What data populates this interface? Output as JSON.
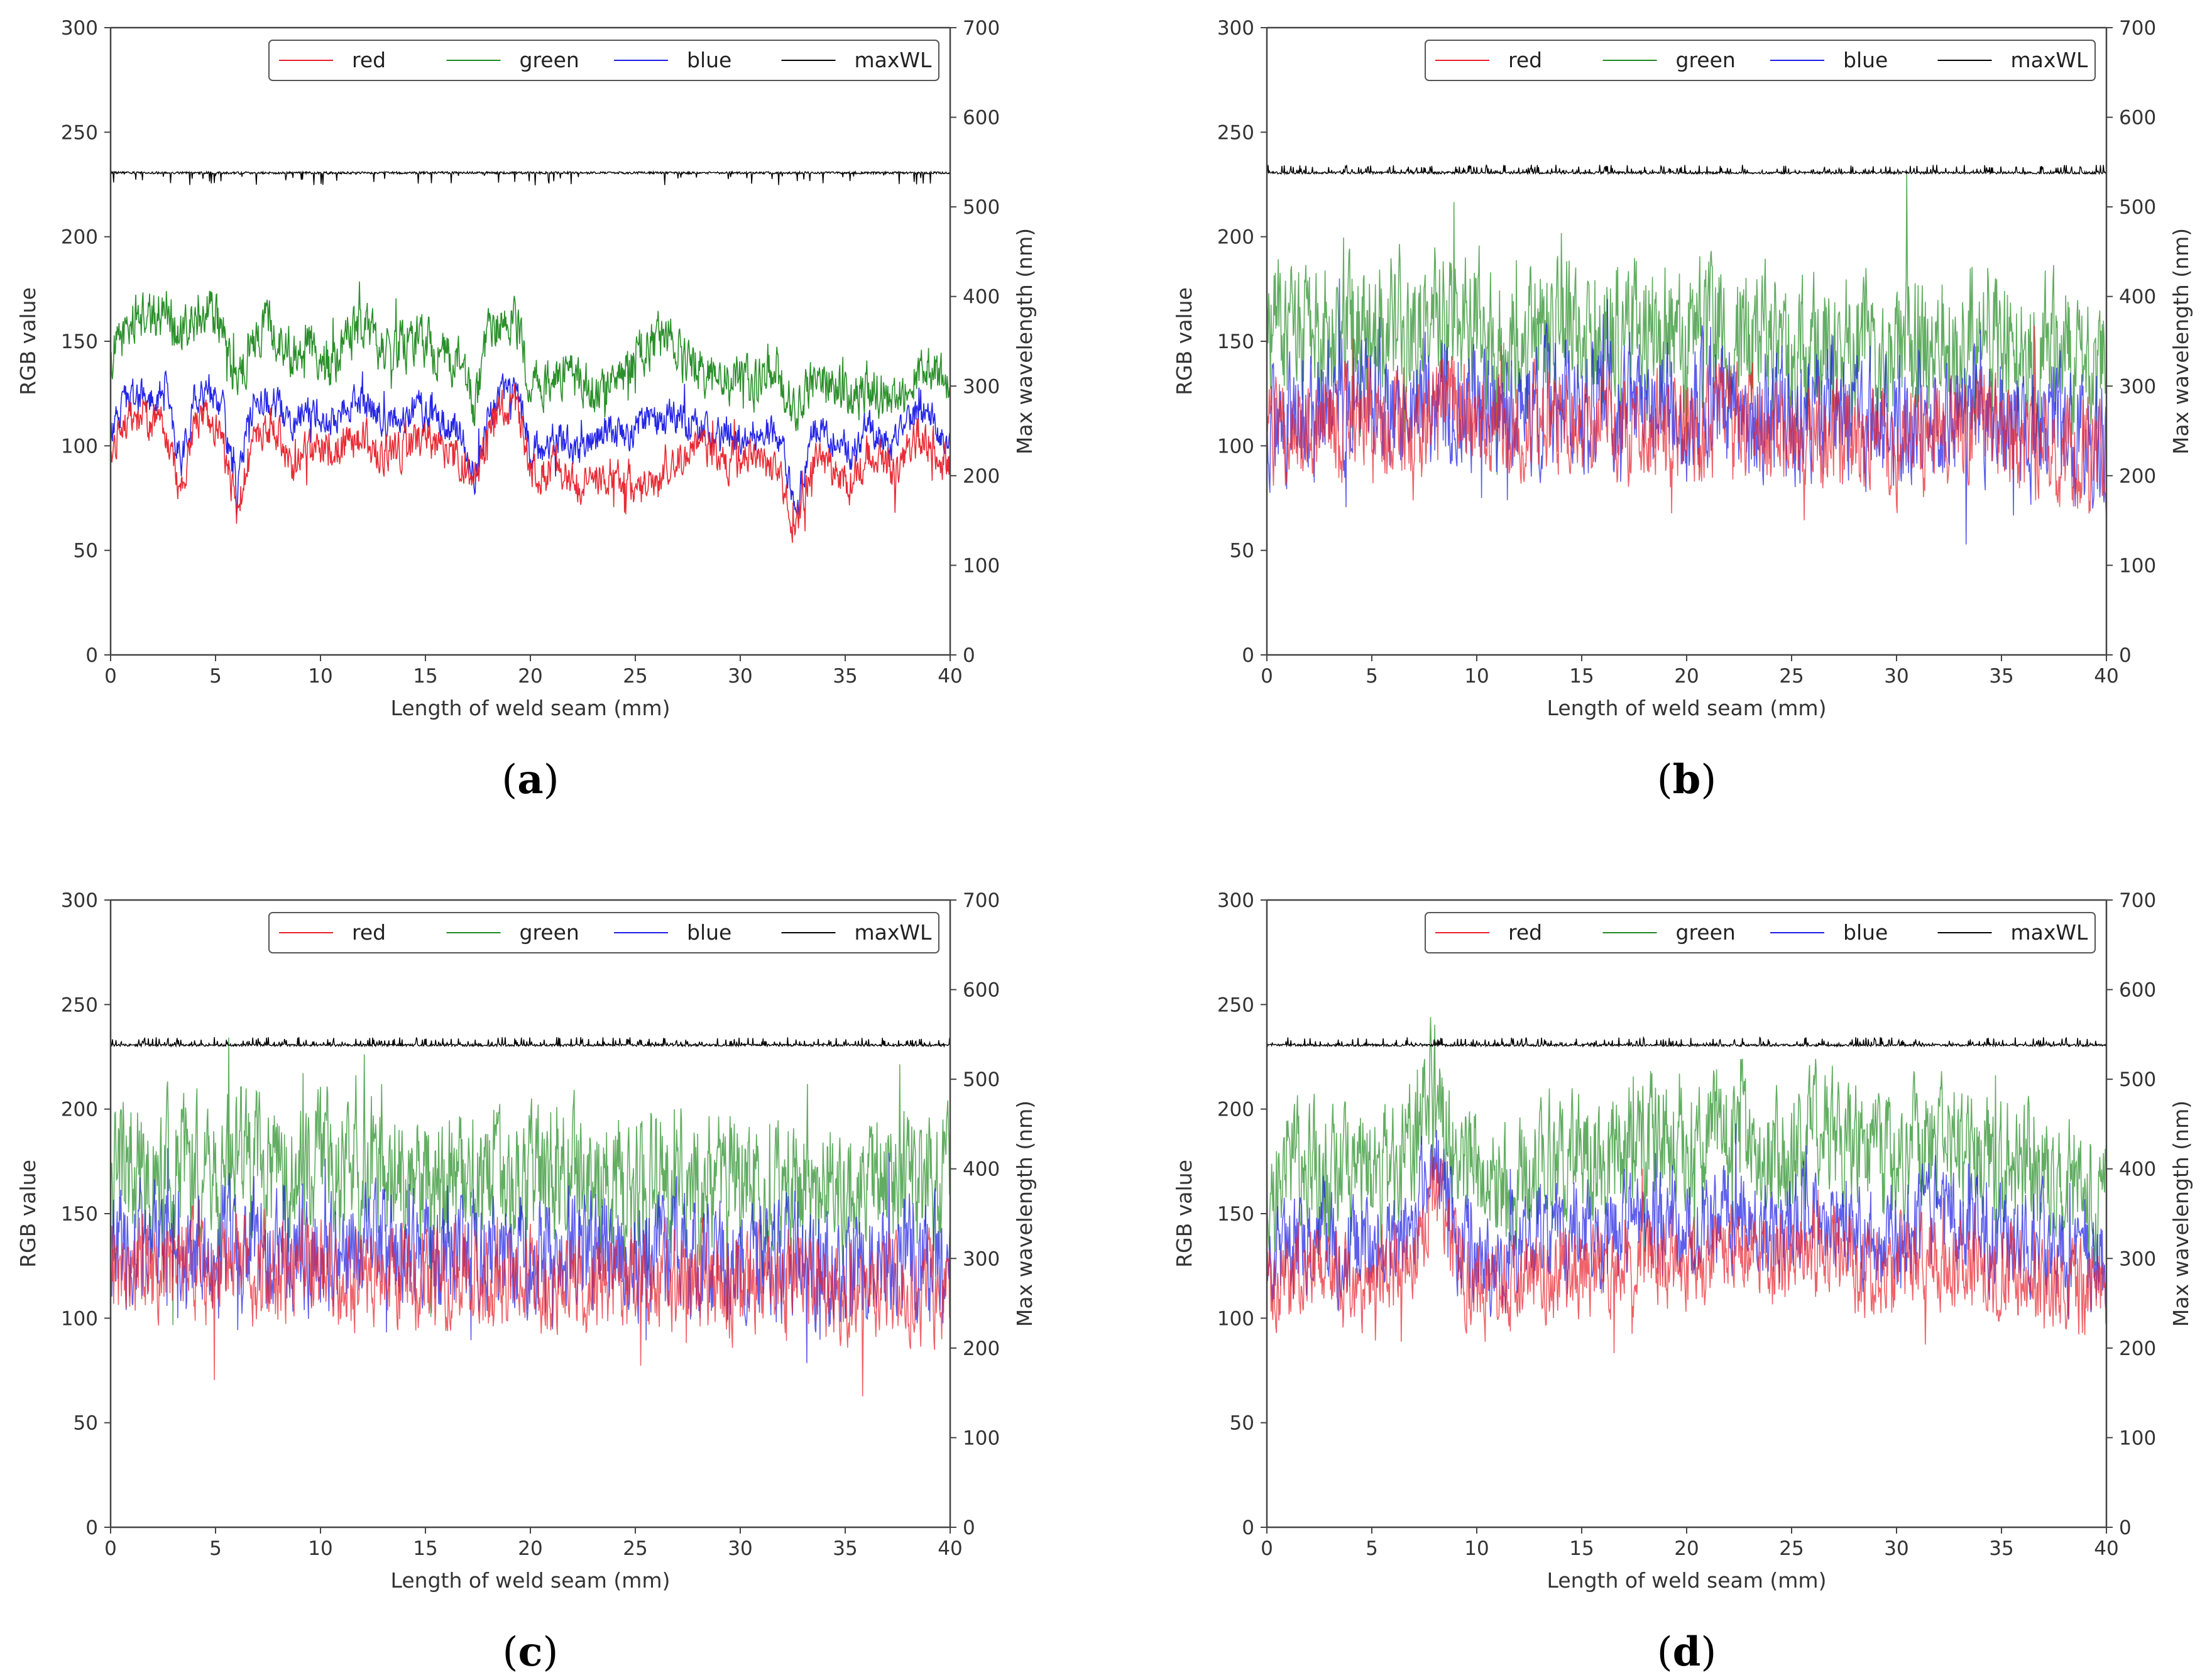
{
  "figure": {
    "captions": [
      "(a)",
      "(b)",
      "(c)",
      "(d)"
    ],
    "caption_letters": [
      "a",
      "b",
      "c",
      "d"
    ]
  },
  "colors": {
    "red": "#e8202a",
    "green": "#1f8a1f",
    "blue": "#1a1ae6",
    "maxWL": "#000000",
    "axis": "#444444",
    "text": "#333333"
  },
  "chart_data": [
    {
      "panel": "a",
      "type": "line",
      "xlabel": "Length of weld seam (mm)",
      "ylabel": "RGB value",
      "ylabel_right": "Max wavelength (nm)",
      "xlim": [
        0,
        40
      ],
      "ylim": [
        0,
        300
      ],
      "ylim_right": [
        0,
        700
      ],
      "xticks": [
        "0",
        "5",
        "10",
        "15",
        "20",
        "25",
        "30",
        "35",
        "40"
      ],
      "yticks": [
        "0",
        "50",
        "100",
        "150",
        "200",
        "250",
        "300"
      ],
      "yticks_right": [
        "0",
        "100",
        "200",
        "300",
        "400",
        "500",
        "600",
        "700"
      ],
      "legend": {
        "position": "top-right",
        "entries": [
          "red",
          "green",
          "blue",
          "maxWL"
        ]
      },
      "series": [
        {
          "name": "red",
          "axis": "left",
          "noise": 8,
          "values": [
            96,
            110,
            115,
            112,
            108,
            75,
            108,
            112,
            104,
            65,
            102,
            110,
            108,
            90,
            96,
            100,
            98,
            102,
            105,
            96,
            98,
            100,
            104,
            102,
            98,
            94,
            80,
            108,
            120,
            118,
            88,
            86,
            90,
            84,
            82,
            88,
            86,
            84,
            80,
            86,
            95,
            94,
            100,
            98,
            92,
            94,
            96,
            90,
            82,
            60,
            90,
            92,
            88,
            80,
            96,
            92,
            86,
            100,
            104,
            98,
            90
          ]
        },
        {
          "name": "green",
          "axis": "left",
          "noise": 10,
          "values": [
            140,
            155,
            162,
            160,
            168,
            150,
            160,
            168,
            155,
            125,
            150,
            160,
            152,
            145,
            150,
            145,
            140,
            152,
            158,
            150,
            145,
            148,
            152,
            148,
            142,
            138,
            118,
            150,
            160,
            160,
            130,
            128,
            135,
            130,
            128,
            125,
            132,
            135,
            145,
            150,
            152,
            140,
            138,
            130,
            132,
            130,
            128,
            138,
            132,
            116,
            128,
            132,
            128,
            118,
            130,
            126,
            124,
            130,
            138,
            134,
            126
          ]
        },
        {
          "name": "blue",
          "axis": "left",
          "noise": 7,
          "values": [
            108,
            120,
            125,
            122,
            126,
            90,
            122,
            128,
            118,
            78,
            118,
            124,
            120,
            110,
            116,
            114,
            112,
            118,
            122,
            114,
            112,
            114,
            118,
            116,
            110,
            106,
            84,
            115,
            126,
            124,
            98,
            100,
            104,
            100,
            98,
            104,
            108,
            106,
            110,
            112,
            114,
            112,
            110,
            104,
            106,
            104,
            102,
            108,
            100,
            70,
            104,
            106,
            102,
            95,
            110,
            106,
            100,
            112,
            116,
            110,
            100
          ]
        },
        {
          "name": "maxWL",
          "axis": "right",
          "baseline": 538,
          "spikes": "down",
          "values": [
            538
          ]
        }
      ]
    },
    {
      "panel": "b",
      "type": "line",
      "xlabel": "Length of weld seam (mm)",
      "ylabel": "RGB value",
      "ylabel_right": "Max wavelength (nm)",
      "xlim": [
        0,
        40
      ],
      "ylim": [
        0,
        300
      ],
      "ylim_right": [
        0,
        700
      ],
      "xticks": [
        "0",
        "5",
        "10",
        "15",
        "20",
        "25",
        "30",
        "35",
        "40"
      ],
      "yticks": [
        "0",
        "50",
        "100",
        "150",
        "200",
        "250",
        "300"
      ],
      "yticks_right": [
        "0",
        "100",
        "200",
        "300",
        "400",
        "500",
        "600",
        "700"
      ],
      "legend": {
        "position": "top-right",
        "entries": [
          "red",
          "green",
          "blue",
          "maxWL"
        ]
      },
      "series": [
        {
          "name": "red",
          "axis": "left",
          "noise": 22,
          "values": [
            105,
            110,
            108,
            112,
            115,
            112,
            110,
            108,
            115,
            118,
            112,
            108,
            110,
            112,
            115,
            110,
            108,
            112,
            110,
            108,
            106,
            110,
            112,
            108,
            106,
            104,
            105,
            108,
            106,
            104,
            102,
            104,
            106,
            108,
            106,
            104,
            102,
            100,
            98,
            96,
            94
          ]
        },
        {
          "name": "green",
          "axis": "left",
          "noise": 28,
          "values": [
            150,
            155,
            152,
            155,
            158,
            155,
            152,
            150,
            158,
            162,
            155,
            150,
            152,
            155,
            158,
            152,
            150,
            155,
            152,
            150,
            148,
            152,
            155,
            150,
            148,
            146,
            148,
            150,
            148,
            146,
            145,
            148,
            150,
            152,
            150,
            148,
            146,
            144,
            142,
            140,
            138
          ]
        },
        {
          "name": "blue",
          "axis": "left",
          "noise": 25,
          "values": [
            112,
            118,
            116,
            120,
            122,
            120,
            118,
            116,
            122,
            126,
            120,
            116,
            118,
            120,
            122,
            118,
            116,
            120,
            118,
            116,
            114,
            118,
            120,
            116,
            114,
            112,
            112,
            116,
            114,
            112,
            110,
            112,
            114,
            116,
            114,
            112,
            110,
            108,
            106,
            104,
            102
          ]
        },
        {
          "name": "maxWL",
          "axis": "right",
          "baseline": 538,
          "spikes": "up",
          "values": [
            538
          ]
        }
      ]
    },
    {
      "panel": "c",
      "type": "line",
      "xlabel": "Length of weld seam (mm)",
      "ylabel": "RGB value",
      "ylabel_right": "Max wavelength (nm)",
      "xlim": [
        0,
        40
      ],
      "ylim": [
        0,
        300
      ],
      "ylim_right": [
        0,
        700
      ],
      "xticks": [
        "0",
        "5",
        "10",
        "15",
        "20",
        "25",
        "30",
        "35",
        "40"
      ],
      "yticks": [
        "0",
        "50",
        "100",
        "150",
        "200",
        "250",
        "300"
      ],
      "yticks_right": [
        "0",
        "100",
        "200",
        "300",
        "400",
        "500",
        "600",
        "700"
      ],
      "legend": {
        "position": "top-right",
        "entries": [
          "red",
          "green",
          "blue",
          "maxWL"
        ]
      },
      "series": [
        {
          "name": "red",
          "axis": "left",
          "noise": 20,
          "values": [
            120,
            125,
            122,
            126,
            124,
            122,
            125,
            123,
            121,
            124,
            122,
            120,
            122,
            124,
            121,
            119,
            120,
            122,
            120,
            118,
            117,
            119,
            120,
            118,
            117,
            116,
            118,
            120,
            118,
            116,
            115,
            117,
            118,
            116,
            114,
            113,
            115,
            117,
            116,
            114,
            112
          ]
        },
        {
          "name": "green",
          "axis": "left",
          "noise": 28,
          "values": [
            165,
            172,
            170,
            174,
            172,
            170,
            172,
            170,
            168,
            172,
            170,
            168,
            170,
            172,
            168,
            166,
            168,
            170,
            168,
            165,
            164,
            166,
            168,
            165,
            164,
            163,
            165,
            168,
            165,
            163,
            162,
            164,
            166,
            164,
            162,
            160,
            163,
            166,
            165,
            163,
            160
          ]
        },
        {
          "name": "blue",
          "axis": "left",
          "noise": 24,
          "values": [
            130,
            136,
            134,
            138,
            136,
            134,
            136,
            134,
            132,
            136,
            134,
            132,
            134,
            136,
            132,
            130,
            132,
            134,
            132,
            130,
            128,
            130,
            132,
            130,
            128,
            127,
            129,
            132,
            130,
            128,
            126,
            128,
            130,
            128,
            126,
            124,
            127,
            130,
            129,
            127,
            125
          ]
        },
        {
          "name": "maxWL",
          "axis": "right",
          "baseline": 538,
          "spikes": "up",
          "values": [
            538
          ]
        }
      ]
    },
    {
      "panel": "d",
      "type": "line",
      "xlabel": "Length of weld seam (mm)",
      "ylabel": "RGB value",
      "ylabel_right": "Max wavelength (nm)",
      "xlim": [
        0,
        40
      ],
      "ylim": [
        0,
        300
      ],
      "ylim_right": [
        0,
        700
      ],
      "xticks": [
        "0",
        "5",
        "10",
        "15",
        "20",
        "25",
        "30",
        "35",
        "40"
      ],
      "yticks": [
        "0",
        "50",
        "100",
        "150",
        "200",
        "250",
        "300"
      ],
      "yticks_right": [
        "0",
        "100",
        "200",
        "300",
        "400",
        "500",
        "600",
        "700"
      ],
      "legend": {
        "position": "top-right",
        "entries": [
          "red",
          "green",
          "blue",
          "maxWL"
        ]
      },
      "series": [
        {
          "name": "red",
          "axis": "left",
          "noise": 18,
          "values": [
            112,
            118,
            125,
            120,
            115,
            118,
            122,
            130,
            160,
            125,
            115,
            112,
            118,
            120,
            125,
            122,
            120,
            125,
            130,
            128,
            125,
            130,
            135,
            130,
            125,
            128,
            132,
            130,
            125,
            122,
            125,
            128,
            130,
            128,
            125,
            122,
            120,
            118,
            115,
            112,
            110
          ]
        },
        {
          "name": "green",
          "axis": "left",
          "noise": 25,
          "values": [
            160,
            168,
            175,
            170,
            165,
            168,
            172,
            185,
            215,
            178,
            165,
            162,
            168,
            172,
            178,
            175,
            172,
            178,
            185,
            182,
            178,
            185,
            190,
            185,
            178,
            182,
            188,
            185,
            178,
            175,
            178,
            182,
            185,
            182,
            178,
            175,
            172,
            170,
            166,
            162,
            160
          ]
        },
        {
          "name": "blue",
          "axis": "left",
          "noise": 20,
          "values": [
            125,
            132,
            140,
            135,
            130,
            132,
            136,
            148,
            175,
            140,
            130,
            126,
            132,
            136,
            142,
            138,
            136,
            142,
            148,
            145,
            142,
            148,
            152,
            148,
            142,
            145,
            150,
            148,
            142,
            138,
            142,
            146,
            148,
            146,
            142,
            138,
            136,
            134,
            130,
            126,
            124
          ]
        },
        {
          "name": "maxWL",
          "axis": "right",
          "baseline": 538,
          "spikes": "up",
          "values": [
            538
          ]
        }
      ]
    }
  ]
}
